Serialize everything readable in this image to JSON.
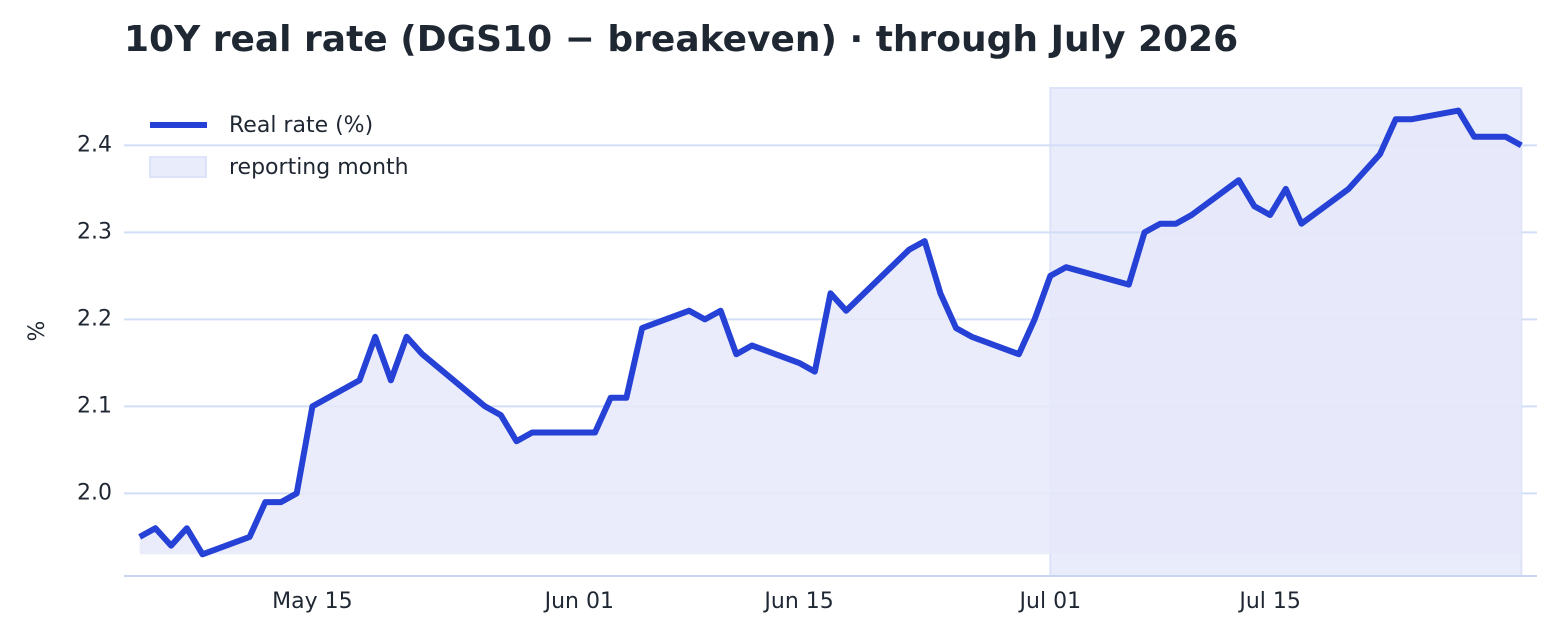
{
  "chart_data": {
    "type": "line",
    "title": "10Y real rate (DGS10 − breakeven) · through July 2026",
    "y_label": "%",
    "x": [
      "05-04",
      "05-05",
      "05-06",
      "05-07",
      "05-08",
      "05-11",
      "05-12",
      "05-13",
      "05-14",
      "05-15",
      "05-18",
      "05-19",
      "05-20",
      "05-21",
      "05-22",
      "05-26",
      "05-27",
      "05-28",
      "05-29",
      "06-01",
      "06-02",
      "06-03",
      "06-04",
      "06-05",
      "06-08",
      "06-09",
      "06-10",
      "06-11",
      "06-12",
      "06-15",
      "06-16",
      "06-17",
      "06-18",
      "06-22",
      "06-23",
      "06-24",
      "06-25",
      "06-26",
      "06-29",
      "06-30",
      "07-01",
      "07-02",
      "07-06",
      "07-07",
      "07-08",
      "07-09",
      "07-10",
      "07-13",
      "07-14",
      "07-15",
      "07-16",
      "07-17",
      "07-20",
      "07-21",
      "07-22",
      "07-23",
      "07-24",
      "07-27",
      "07-28",
      "07-29",
      "07-30",
      "07-31"
    ],
    "series": [
      {
        "name": "Real rate (%)",
        "color": "#2541d6",
        "values": [
          1.95,
          1.96,
          1.94,
          1.96,
          1.93,
          1.95,
          1.99,
          1.99,
          2.0,
          2.1,
          2.13,
          2.18,
          2.13,
          2.18,
          2.16,
          2.1,
          2.09,
          2.06,
          2.07,
          2.07,
          2.07,
          2.11,
          2.11,
          2.19,
          2.21,
          2.2,
          2.21,
          2.16,
          2.17,
          2.15,
          2.14,
          2.23,
          2.21,
          2.28,
          2.29,
          2.23,
          2.19,
          2.18,
          2.16,
          2.2,
          2.25,
          2.26,
          2.24,
          2.3,
          2.31,
          2.31,
          2.32,
          2.36,
          2.33,
          2.32,
          2.35,
          2.31,
          2.35,
          2.37,
          2.39,
          2.43,
          2.43,
          2.44,
          2.41,
          2.41,
          2.41,
          2.4
        ]
      }
    ],
    "highlight": {
      "start": "07-01",
      "end": "07-31",
      "label": "reporting month",
      "color": "#e8ecfb"
    },
    "area_color": "#e6e9fa",
    "xlim": [
      "05-03",
      "08-01"
    ],
    "xticks": [
      {
        "value": "05-15",
        "label": "May 15"
      },
      {
        "value": "06-01",
        "label": "Jun 01"
      },
      {
        "value": "06-15",
        "label": "Jun 15"
      },
      {
        "value": "07-01",
        "label": "Jul 01"
      },
      {
        "value": "07-15",
        "label": "Jul 15"
      }
    ],
    "ylim": [
      1.905,
      2.466
    ],
    "yticks": [
      {
        "value": 2.0,
        "label": "2.0"
      },
      2.1,
      2.2,
      2.3,
      2.4
    ],
    "grid": true,
    "legend": "upper left"
  }
}
